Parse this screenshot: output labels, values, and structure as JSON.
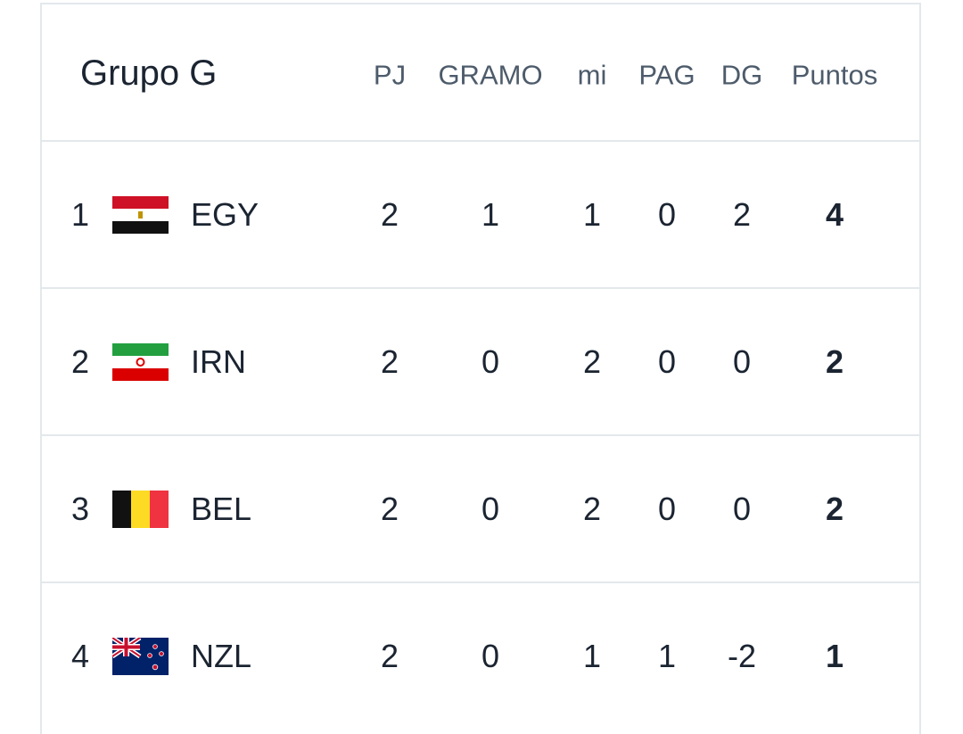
{
  "header": {
    "title": "Grupo G",
    "columns": [
      "PJ",
      "GRAMO",
      "mi",
      "PAG",
      "DG",
      "Puntos"
    ]
  },
  "rows": [
    {
      "rank": 1,
      "team": "EGY",
      "stats": [
        2,
        1,
        1,
        0,
        2,
        4
      ]
    },
    {
      "rank": 2,
      "team": "IRN",
      "stats": [
        2,
        0,
        2,
        0,
        0,
        2
      ]
    },
    {
      "rank": 3,
      "team": "BEL",
      "stats": [
        2,
        0,
        2,
        0,
        0,
        2
      ]
    },
    {
      "rank": 4,
      "team": "NZL",
      "stats": [
        2,
        0,
        1,
        1,
        -2,
        1
      ]
    }
  ]
}
